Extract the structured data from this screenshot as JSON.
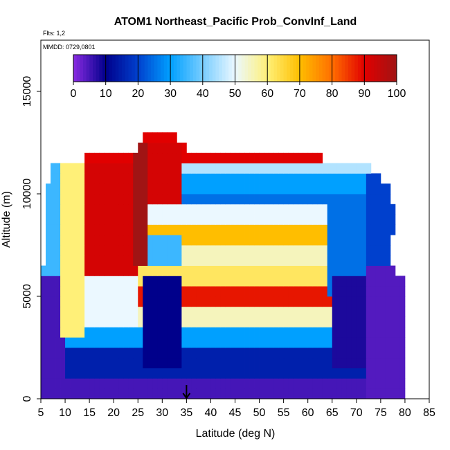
{
  "chart_data": {
    "type": "heatmap",
    "title": "ATOM1 Northeast_Pacific Prob_ConvInf_Land",
    "subtitle_lines": [
      "Flts: 1,2",
      "MMDD: 0729,0801"
    ],
    "xlabel": "Latitude (deg N)",
    "ylabel": "Altitude (m)",
    "xlim": [
      5,
      85
    ],
    "ylim": [
      0,
      17500
    ],
    "xticks": [
      "5",
      "10",
      "15",
      "20",
      "25",
      "30",
      "35",
      "40",
      "45",
      "50",
      "55",
      "60",
      "65",
      "70",
      "75",
      "80",
      "85"
    ],
    "yticks": [
      "0",
      "5000",
      "10000",
      "15000"
    ],
    "colorbar": {
      "ticks": [
        "0",
        "10",
        "20",
        "30",
        "40",
        "50",
        "60",
        "70",
        "80",
        "90",
        "100"
      ],
      "range": [
        0,
        100
      ],
      "placement": "top-inside"
    },
    "marker": {
      "x": 35,
      "symbol": "arrow"
    },
    "cell_size": {
      "lat_deg": 1,
      "alt_m": 500
    },
    "lat_start": 5,
    "alt_layers_m": [
      0,
      500,
      1000,
      1500,
      2000,
      2500,
      3000,
      3500,
      4000,
      4500,
      5000,
      5500,
      6000,
      6500,
      7000,
      7500,
      8000,
      8500,
      9000,
      9500,
      10000,
      10500,
      11000,
      11500,
      12000,
      12500
    ],
    "coverage": [
      {
        "alt": 0,
        "lat_min": 5,
        "lat_max": 80
      },
      {
        "alt": 500,
        "lat_min": 5,
        "lat_max": 80
      },
      {
        "alt": 1000,
        "lat_min": 5,
        "lat_max": 80
      },
      {
        "alt": 1500,
        "lat_min": 5,
        "lat_max": 80
      },
      {
        "alt": 2000,
        "lat_min": 5,
        "lat_max": 80
      },
      {
        "alt": 2500,
        "lat_min": 5,
        "lat_max": 80
      },
      {
        "alt": 3000,
        "lat_min": 5,
        "lat_max": 80
      },
      {
        "alt": 3500,
        "lat_min": 5,
        "lat_max": 80
      },
      {
        "alt": 4000,
        "lat_min": 5,
        "lat_max": 80
      },
      {
        "alt": 4500,
        "lat_min": 5,
        "lat_max": 80
      },
      {
        "alt": 5000,
        "lat_min": 5,
        "lat_max": 80
      },
      {
        "alt": 5500,
        "lat_min": 5,
        "lat_max": 80
      },
      {
        "alt": 6000,
        "lat_min": 5,
        "lat_max": 78
      },
      {
        "alt": 6500,
        "lat_min": 6,
        "lat_max": 77
      },
      {
        "alt": 7000,
        "lat_min": 6,
        "lat_max": 77
      },
      {
        "alt": 7500,
        "lat_min": 6,
        "lat_max": 77
      },
      {
        "alt": 8000,
        "lat_min": 6,
        "lat_max": 78
      },
      {
        "alt": 8500,
        "lat_min": 6,
        "lat_max": 78
      },
      {
        "alt": 9000,
        "lat_min": 6,
        "lat_max": 78
      },
      {
        "alt": 9500,
        "lat_min": 6,
        "lat_max": 77
      },
      {
        "alt": 10000,
        "lat_min": 6,
        "lat_max": 77
      },
      {
        "alt": 10500,
        "lat_min": 7,
        "lat_max": 75
      },
      {
        "alt": 11000,
        "lat_min": 7,
        "lat_max": 73
      },
      {
        "alt": 11500,
        "lat_min": 14,
        "lat_max": 63
      },
      {
        "alt": 12000,
        "lat_min": 25,
        "lat_max": 35
      },
      {
        "alt": 12500,
        "lat_min": 26,
        "lat_max": 33
      }
    ],
    "regions": [
      {
        "lat": [
          5,
          85
        ],
        "alt": [
          0,
          1000
        ],
        "value": 5
      },
      {
        "lat": [
          5,
          85
        ],
        "alt": [
          1000,
          2500
        ],
        "value": 15
      },
      {
        "lat": [
          5,
          85
        ],
        "alt": [
          2500,
          3500
        ],
        "value": 30
      },
      {
        "lat": [
          5,
          85
        ],
        "alt": [
          3500,
          4500
        ],
        "value": 55
      },
      {
        "lat": [
          5,
          85
        ],
        "alt": [
          4500,
          5500
        ],
        "value": 88
      },
      {
        "lat": [
          5,
          85
        ],
        "alt": [
          5500,
          6500
        ],
        "value": 62
      },
      {
        "lat": [
          5,
          85
        ],
        "alt": [
          6500,
          7500
        ],
        "value": 55
      },
      {
        "lat": [
          5,
          85
        ],
        "alt": [
          7500,
          8500
        ],
        "value": 70
      },
      {
        "lat": [
          5,
          85
        ],
        "alt": [
          8500,
          9500
        ],
        "value": 50
      },
      {
        "lat": [
          5,
          85
        ],
        "alt": [
          9500,
          10500
        ],
        "value": 25
      },
      {
        "lat": [
          5,
          85
        ],
        "alt": [
          10500,
          11500
        ],
        "value": 45
      },
      {
        "lat": [
          5,
          85
        ],
        "alt": [
          11500,
          13000
        ],
        "value": 90
      },
      {
        "lat": [
          5,
          10
        ],
        "alt": [
          0,
          6000
        ],
        "value": 5
      },
      {
        "lat": [
          5,
          9
        ],
        "alt": [
          6000,
          11500
        ],
        "value": 35
      },
      {
        "lat": [
          9,
          14
        ],
        "alt": [
          3000,
          11500
        ],
        "value": 60
      },
      {
        "lat": [
          14,
          25
        ],
        "alt": [
          6000,
          11500
        ],
        "value": 92
      },
      {
        "lat": [
          14,
          25
        ],
        "alt": [
          3500,
          6000
        ],
        "value": 50
      },
      {
        "lat": [
          24,
          27
        ],
        "alt": [
          6500,
          12500
        ],
        "value": 100
      },
      {
        "lat": [
          26,
          34
        ],
        "alt": [
          1500,
          6000
        ],
        "value": 10
      },
      {
        "lat": [
          27,
          34
        ],
        "alt": [
          9500,
          12500
        ],
        "value": 92
      },
      {
        "lat": [
          27,
          34
        ],
        "alt": [
          6500,
          8000
        ],
        "value": 35
      },
      {
        "lat": [
          34,
          72
        ],
        "alt": [
          10000,
          11000
        ],
        "value": 30
      },
      {
        "lat": [
          64,
          72
        ],
        "alt": [
          5000,
          10000
        ],
        "value": 25
      },
      {
        "lat": [
          65,
          76
        ],
        "alt": [
          1500,
          6000
        ],
        "value": 8
      },
      {
        "lat": [
          72,
          80
        ],
        "alt": [
          0,
          6500
        ],
        "value": 4
      },
      {
        "lat": [
          72,
          78
        ],
        "alt": [
          6500,
          11000
        ],
        "value": 20
      }
    ]
  }
}
